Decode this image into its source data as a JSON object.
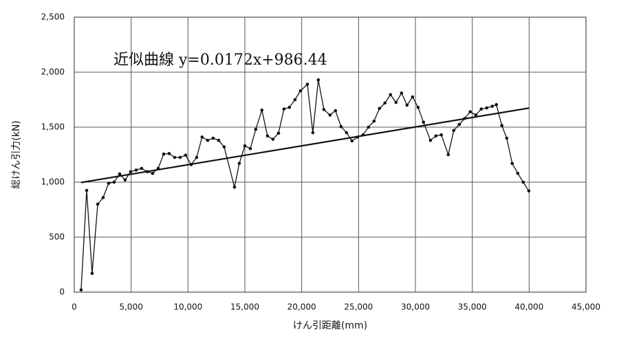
{
  "chart_data": {
    "type": "line",
    "annotation": "近似曲線 y=0.0172x+986.44",
    "xlabel": "けん引距離(mm)",
    "ylabel": "総けん引力(kN)",
    "color": "#111111",
    "grid": true,
    "x": [
      600,
      1090,
      1570,
      2060,
      2540,
      3020,
      3500,
      3990,
      4470,
      4960,
      5440,
      5920,
      6410,
      6890,
      7380,
      7860,
      8340,
      8830,
      9310,
      9790,
      10280,
      10760,
      11240,
      11730,
      12210,
      12700,
      13180,
      14090,
      14510,
      15000,
      15480,
      15960,
      16500,
      16990,
      17470,
      17960,
      18440,
      18920,
      19410,
      19890,
      20500,
      20980,
      21460,
      21950,
      22490,
      22970,
      23460,
      23940,
      24420,
      24910,
      25390,
      25870,
      26360,
      26840,
      27320,
      27810,
      28290,
      28780,
      29260,
      29750,
      30230,
      30710,
      31320,
      31800,
      32280,
      32890,
      33370,
      33860,
      34340,
      34820,
      35310,
      35790,
      36270,
      36760,
      37120,
      37600,
      38030,
      38510,
      39000,
      39480,
      39970
    ],
    "values": [
      20,
      925,
      170,
      800,
      860,
      990,
      1000,
      1075,
      1020,
      1095,
      1110,
      1125,
      1095,
      1080,
      1125,
      1255,
      1260,
      1225,
      1225,
      1245,
      1160,
      1225,
      1410,
      1380,
      1400,
      1380,
      1320,
      955,
      1170,
      1330,
      1305,
      1480,
      1655,
      1420,
      1390,
      1445,
      1665,
      1680,
      1750,
      1830,
      1890,
      1450,
      1930,
      1660,
      1610,
      1650,
      1505,
      1450,
      1375,
      1410,
      1430,
      1500,
      1555,
      1670,
      1720,
      1795,
      1725,
      1810,
      1700,
      1775,
      1680,
      1545,
      1380,
      1420,
      1430,
      1250,
      1470,
      1525,
      1580,
      1640,
      1610,
      1665,
      1675,
      1690,
      1705,
      1515,
      1400,
      1170,
      1080,
      1000,
      920
    ],
    "trendline": {
      "x": [
        600,
        40000
      ],
      "values": [
        997,
        1674
      ]
    },
    "xlim": [
      0,
      45000
    ],
    "xticks": [
      0,
      {
        "value": 5000,
        "label": "5,000"
      },
      {
        "value": 10000,
        "label": "10,000"
      },
      {
        "value": 15000,
        "label": "15,000"
      },
      {
        "value": 20000,
        "label": "20,000"
      },
      {
        "value": 25000,
        "label": "25,000"
      },
      {
        "value": 30000,
        "label": "30,000"
      },
      {
        "value": 35000,
        "label": "35,000"
      },
      {
        "value": 40000,
        "label": "40,000"
      },
      {
        "value": 45000,
        "label": "45,000"
      }
    ],
    "ylim": [
      0,
      2500
    ],
    "yticks": [
      0,
      500,
      {
        "value": 1000,
        "label": "1,000"
      },
      {
        "value": 1500,
        "label": "1,500"
      },
      {
        "value": 2000,
        "label": "2,000"
      },
      {
        "value": 2500,
        "label": "2,500"
      }
    ]
  }
}
